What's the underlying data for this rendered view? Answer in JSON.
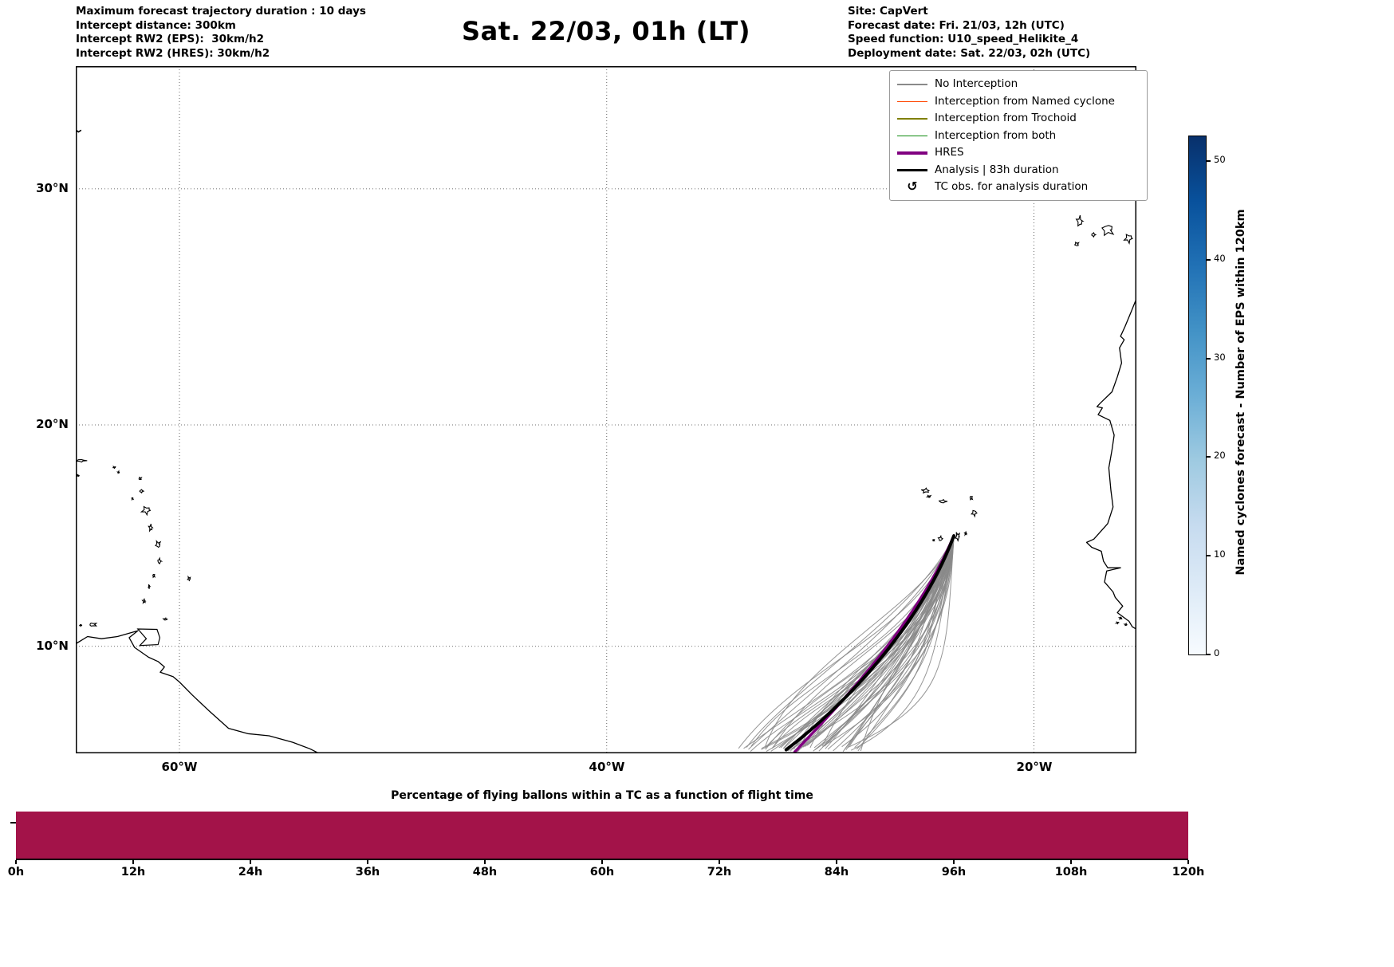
{
  "header": {
    "left_lines": [
      "Maximum forecast trajectory duration : 10 days",
      "Intercept distance: 300km",
      "Intercept RW2 (EPS):  30km/h2",
      "Intercept RW2 (HRES): 30km/h2"
    ],
    "title": "Sat. 22/03, 01h (LT)",
    "right_lines": [
      "Site: CapVert",
      "Forecast date: Fri. 21/03, 12h (UTC)",
      "Speed function: U10_speed_Helikite_4",
      "Deployment date: Sat. 22/03, 02h (UTC)"
    ]
  },
  "map": {
    "lat_ticks": [
      {
        "label": "30°N",
        "lat": 30
      },
      {
        "label": "20°N",
        "lat": 20
      },
      {
        "label": "10°N",
        "lat": 10
      }
    ],
    "lon_ticks": [
      {
        "label": "60°W",
        "lon": -60
      },
      {
        "label": "40°W",
        "lon": -40
      },
      {
        "label": "20°W",
        "lon": -20
      }
    ]
  },
  "legend": {
    "items": [
      {
        "label": "No Interception",
        "color": "#8a8a8a",
        "thick": false
      },
      {
        "label": "Interception from Named cyclone",
        "color": "#ff4500",
        "thick": false
      },
      {
        "label": "Interception from Trochoid",
        "color": "#808000",
        "thick": false
      },
      {
        "label": "Interception from both",
        "color": "#0f8a0f",
        "thick": false
      },
      {
        "label": "HRES",
        "color": "#800080",
        "thick": true
      },
      {
        "label": "Analysis | 83h duration",
        "color": "#000000",
        "thick": true
      },
      {
        "label": "TC obs. for analysis duration",
        "symbol": "↺",
        "color": "#000000"
      }
    ]
  },
  "colorbar": {
    "label": "Named cyclones forecast - Number of EPS within 120km",
    "ticks": [
      0,
      10,
      20,
      30,
      40,
      50
    ],
    "vmin": 0,
    "vmax": 52.5,
    "gradient": [
      "#f7fbff",
      "#deebf7",
      "#c6dbef",
      "#9ecae1",
      "#6baed6",
      "#4292c6",
      "#2171b5",
      "#08519c",
      "#08306b"
    ]
  },
  "chart_data": [
    {
      "type": "line",
      "title": "Sat. 22/03, 01h (LT)",
      "description": "Balloon / TC interception forecast trajectory map over the tropical Atlantic; EPS ensemble trajectories converge at Cape Verde deployment site and fan out to the southwest.",
      "map_extent": {
        "lon_min": -64.9,
        "lon_max": -15.1,
        "lat_min": 5.0,
        "lat_max": 34.8
      },
      "grid": {
        "lat_lines": [
          10,
          20,
          30
        ],
        "lon_lines": [
          -60,
          -40,
          -20
        ],
        "style": "dotted"
      },
      "deployment_site": {
        "name": "CapVert",
        "lon": -23.75,
        "lat": 15.05
      },
      "series": [
        {
          "name": "HRES",
          "color": "#800080",
          "width": 3.5,
          "control_points_lonlat": [
            [
              -23.75,
              15.05
            ],
            [
              -25.6,
              10.8
            ],
            [
              -29.5,
              6.9
            ],
            [
              -31.2,
              5.1
            ]
          ]
        },
        {
          "name": "Analysis | 83h duration",
          "color": "#000000",
          "width": 4,
          "control_points_lonlat": [
            [
              -23.75,
              15.05
            ],
            [
              -25.3,
              11.0
            ],
            [
              -28.8,
              7.3
            ],
            [
              -31.6,
              5.2
            ]
          ]
        }
      ],
      "ensemble": {
        "name": "No Interception",
        "color": "#8a8a8a",
        "count": 52,
        "seed": 11,
        "start_lonlat": [
          -23.75,
          15.05
        ],
        "end_lon_range": [
          -33.6,
          -28.2
        ],
        "end_lat": 5.0
      },
      "coastlines": {
        "africa": [
          [
            -15.14,
            25.6
          ],
          [
            -15.45,
            24.9
          ],
          [
            -15.75,
            24.25
          ],
          [
            -15.95,
            23.85
          ],
          [
            -15.78,
            23.7
          ],
          [
            -16.0,
            23.35
          ],
          [
            -15.9,
            22.7
          ],
          [
            -16.1,
            22.1
          ],
          [
            -16.35,
            21.45
          ],
          [
            -16.9,
            20.95
          ],
          [
            -17.05,
            20.8
          ],
          [
            -16.8,
            20.75
          ],
          [
            -17.0,
            20.45
          ],
          [
            -16.45,
            20.2
          ],
          [
            -16.25,
            19.55
          ],
          [
            -16.35,
            18.9
          ],
          [
            -16.5,
            18.1
          ],
          [
            -16.4,
            17.1
          ],
          [
            -16.3,
            16.35
          ],
          [
            -16.55,
            15.6
          ],
          [
            -17.2,
            14.9
          ],
          [
            -17.54,
            14.75
          ],
          [
            -17.3,
            14.53
          ],
          [
            -16.85,
            14.35
          ],
          [
            -16.75,
            13.9
          ],
          [
            -16.55,
            13.6
          ],
          [
            -15.95,
            13.6
          ],
          [
            -16.6,
            13.45
          ],
          [
            -16.7,
            12.95
          ],
          [
            -16.3,
            12.5
          ],
          [
            -16.2,
            12.25
          ],
          [
            -15.85,
            11.85
          ],
          [
            -16.1,
            11.55
          ],
          [
            -15.55,
            11.15
          ],
          [
            -15.4,
            10.9
          ],
          [
            -15.14,
            10.75
          ]
        ],
        "south_america": [
          [
            -64.88,
            10.1
          ],
          [
            -64.3,
            10.45
          ],
          [
            -63.65,
            10.35
          ],
          [
            -62.9,
            10.45
          ],
          [
            -62.2,
            10.65
          ],
          [
            -61.95,
            10.72
          ],
          [
            -62.35,
            10.4
          ],
          [
            -62.1,
            9.95
          ],
          [
            -61.45,
            9.5
          ],
          [
            -61.0,
            9.3
          ],
          [
            -60.7,
            9.05
          ],
          [
            -60.9,
            8.8
          ],
          [
            -60.3,
            8.6
          ],
          [
            -60.0,
            8.35
          ],
          [
            -59.4,
            7.75
          ],
          [
            -58.6,
            7.0
          ],
          [
            -57.7,
            6.2
          ],
          [
            -56.8,
            5.95
          ],
          [
            -55.8,
            5.85
          ],
          [
            -54.7,
            5.55
          ],
          [
            -53.9,
            5.25
          ],
          [
            -53.4,
            5.0
          ]
        ],
        "trinidad": [
          [
            -61.95,
            10.8
          ],
          [
            -61.05,
            10.78
          ],
          [
            -60.92,
            10.4
          ],
          [
            -61.0,
            10.08
          ],
          [
            -61.85,
            10.04
          ],
          [
            -61.55,
            10.35
          ],
          [
            -61.95,
            10.8
          ]
        ],
        "bermuda": [
          [
            -64.9,
            32.4
          ],
          [
            -64.73,
            32.28
          ],
          [
            -64.6,
            32.35
          ]
        ],
        "islands": [
          [
            -17.87,
            28.68,
            0.3,
            0.45
          ],
          [
            -18.0,
            27.73,
            0.22,
            0.18
          ],
          [
            -17.22,
            28.12,
            0.2,
            0.18
          ],
          [
            -16.55,
            28.32,
            0.62,
            0.5
          ],
          [
            -15.58,
            27.97,
            0.4,
            0.38
          ],
          [
            -25.08,
            17.08,
            0.38,
            0.22
          ],
          [
            -24.92,
            16.82,
            0.18,
            0.1
          ],
          [
            -24.27,
            16.6,
            0.4,
            0.16
          ],
          [
            -22.94,
            16.76,
            0.14,
            0.2
          ],
          [
            -22.8,
            16.08,
            0.26,
            0.28
          ],
          [
            -23.2,
            15.16,
            0.1,
            0.14
          ],
          [
            -23.58,
            15.02,
            0.22,
            0.4
          ],
          [
            -24.38,
            14.92,
            0.22,
            0.22
          ],
          [
            -24.7,
            14.85,
            0.09,
            0.09
          ],
          [
            -64.62,
            18.42,
            0.55,
            0.12
          ],
          [
            -64.82,
            17.76,
            0.3,
            0.1
          ],
          [
            -63.05,
            18.12,
            0.14,
            0.08
          ],
          [
            -62.85,
            17.9,
            0.09,
            0.09
          ],
          [
            -61.84,
            17.62,
            0.14,
            0.13
          ],
          [
            -61.78,
            17.06,
            0.19,
            0.16
          ],
          [
            -62.2,
            16.73,
            0.08,
            0.1
          ],
          [
            -61.56,
            16.2,
            0.42,
            0.38
          ],
          [
            -61.35,
            15.42,
            0.18,
            0.32
          ],
          [
            -61.0,
            14.66,
            0.26,
            0.32
          ],
          [
            -60.94,
            13.9,
            0.17,
            0.27
          ],
          [
            -61.2,
            13.24,
            0.11,
            0.17
          ],
          [
            -61.42,
            12.74,
            0.07,
            0.2
          ],
          [
            -61.66,
            12.08,
            0.14,
            0.18
          ],
          [
            -59.55,
            13.1,
            0.14,
            0.18
          ],
          [
            -60.66,
            11.25,
            0.2,
            0.1
          ],
          [
            -64.05,
            11.0,
            0.4,
            0.18
          ],
          [
            -64.62,
            10.97,
            0.12,
            0.08
          ],
          [
            -15.95,
            11.3,
            0.12,
            0.1
          ],
          [
            -16.1,
            11.08,
            0.1,
            0.08
          ],
          [
            -15.7,
            11.0,
            0.12,
            0.09
          ]
        ]
      }
    },
    {
      "type": "bar",
      "title": "Percentage of flying ballons within a TC as a function of flight time",
      "x": [
        0,
        12,
        24,
        36,
        48,
        60,
        72,
        84,
        96,
        108,
        120
      ],
      "tick_labels": [
        "0h",
        "12h",
        "24h",
        "36h",
        "48h",
        "60h",
        "72h",
        "84h",
        "96h",
        "108h",
        "120h"
      ],
      "values_percent": [
        100,
        100,
        100,
        100,
        100,
        100,
        100,
        100,
        100,
        100,
        100
      ],
      "bar_color": "#a31349",
      "xlabel": "flight time",
      "ylabel": "Percentage of flying balloons within a TC",
      "ylim": [
        0,
        100
      ]
    }
  ]
}
